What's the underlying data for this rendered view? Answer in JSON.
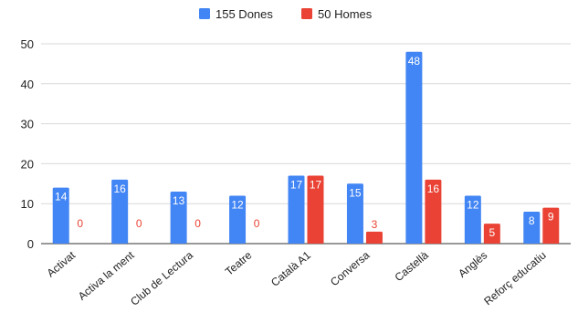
{
  "chart_data": {
    "type": "bar",
    "title": "",
    "xlabel": "",
    "ylabel": "",
    "ylim": [
      0,
      50
    ],
    "yticks": [
      0,
      10,
      20,
      30,
      40,
      50
    ],
    "grid": true,
    "legend_position": "top",
    "categories": [
      "Activat",
      "Activa la ment",
      "Club de Lectura",
      "Teatre",
      "Català A1",
      "Conversa",
      "Castellà",
      "Anglès",
      "Reforç educatiu"
    ],
    "series": [
      {
        "name": "155 Dones",
        "color": "#4285f4",
        "values": [
          14,
          16,
          13,
          12,
          17,
          15,
          48,
          12,
          8
        ]
      },
      {
        "name": "50 Homes",
        "color": "#ea4335",
        "values": [
          0,
          0,
          0,
          0,
          17,
          3,
          16,
          5,
          9
        ]
      }
    ]
  }
}
